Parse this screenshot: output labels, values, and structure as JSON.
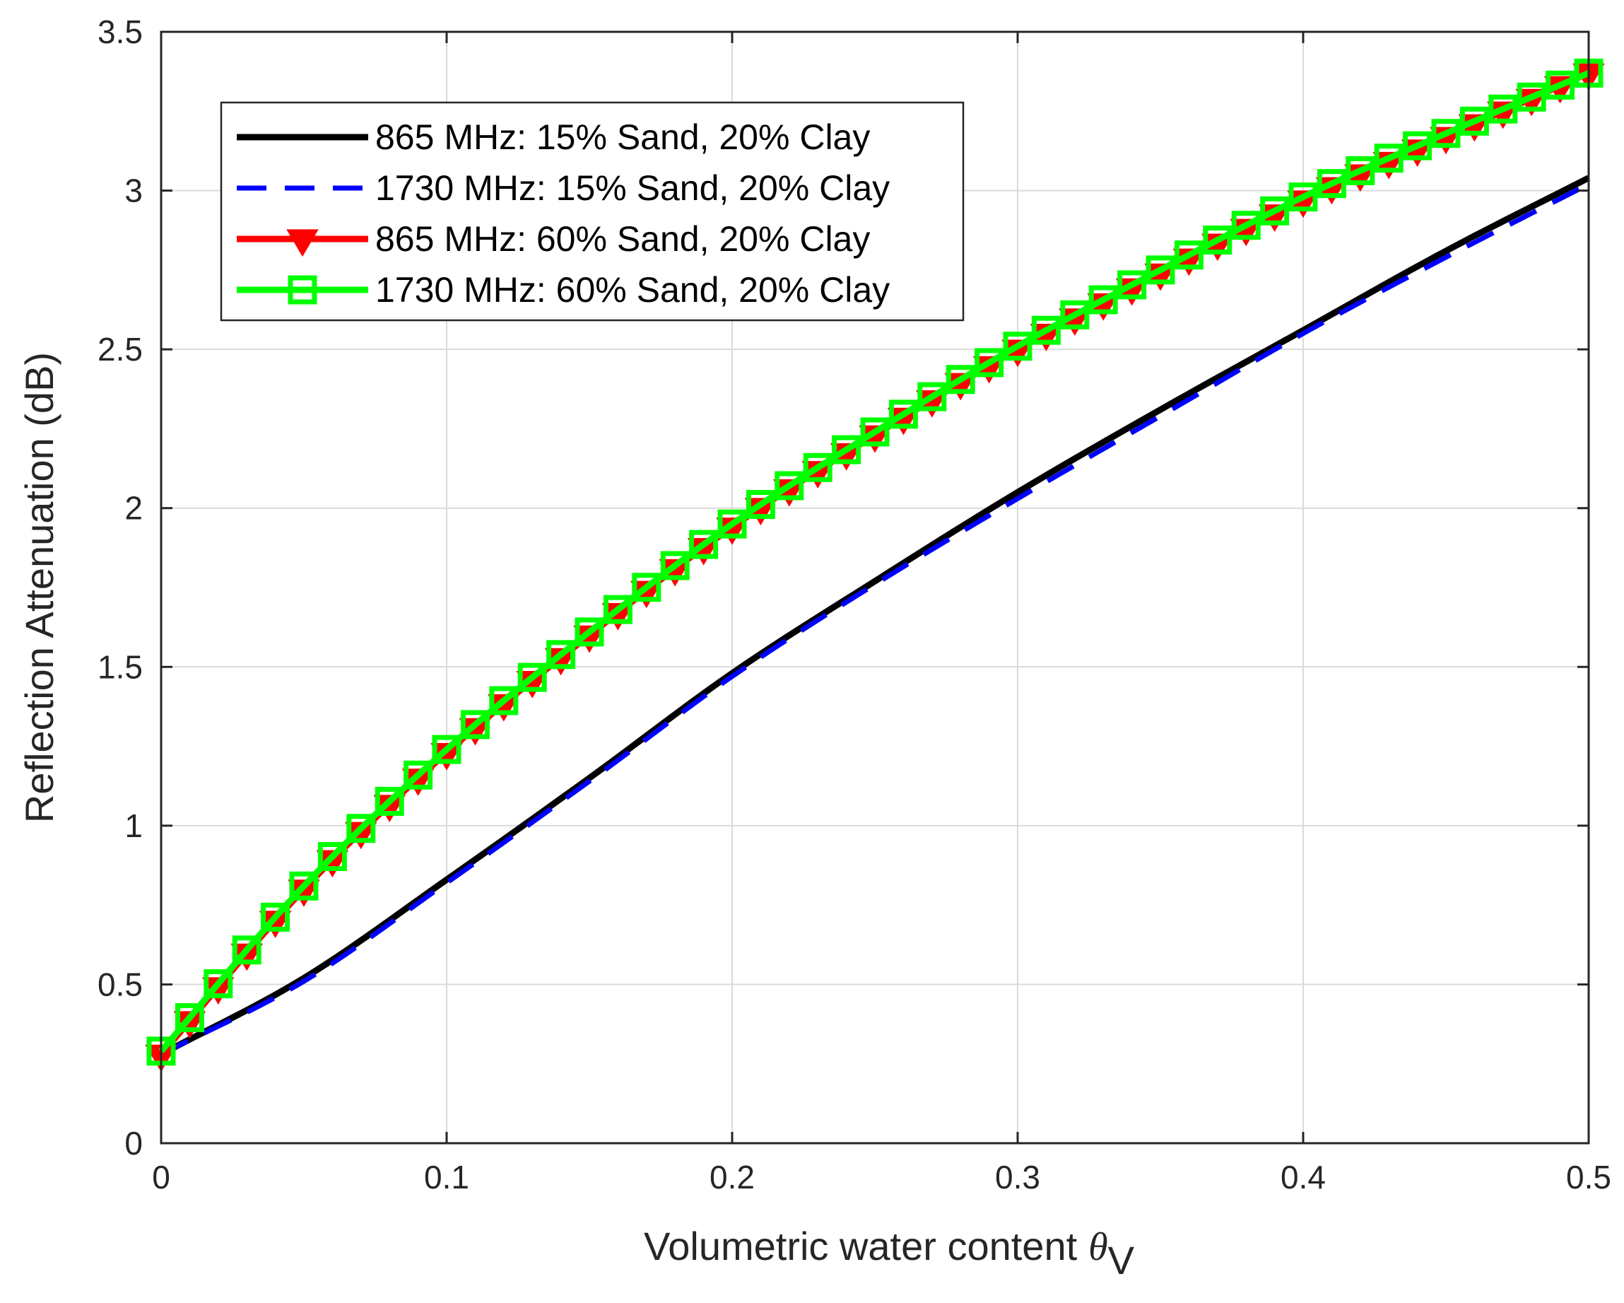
{
  "chart_data": {
    "type": "line",
    "title": "",
    "xlabel": "Volumetric water content",
    "xlabel_symbol": "θ",
    "xlabel_subscript": "V",
    "ylabel": "Reflection Attenuation (dB)",
    "xlim": [
      0,
      0.5
    ],
    "ylim": [
      0,
      3.5
    ],
    "xticks": [
      0,
      0.1,
      0.2,
      0.3,
      0.4,
      0.5
    ],
    "xtick_labels": [
      "0",
      "0.1",
      "0.2",
      "0.3",
      "0.4",
      "0.5"
    ],
    "yticks": [
      0,
      0.5,
      1,
      1.5,
      2,
      2.5,
      3,
      3.5
    ],
    "ytick_labels": [
      "0",
      "0.5",
      "1",
      "1.5",
      "2",
      "2.5",
      "3",
      "3.5"
    ],
    "grid": true,
    "legend_position": "top-left",
    "x": [
      0,
      0.05,
      0.1,
      0.15,
      0.2,
      0.25,
      0.3,
      0.35,
      0.4,
      0.45,
      0.5
    ],
    "series": [
      {
        "name": "865 MHz: 15% Sand, 20% Clay",
        "color": "#000000",
        "line": "solid",
        "marker": "none",
        "values": [
          0.28,
          0.52,
          0.83,
          1.15,
          1.48,
          1.77,
          2.05,
          2.31,
          2.56,
          2.81,
          3.04
        ]
      },
      {
        "name": "1730 MHz: 15% Sand, 20% Clay",
        "color": "#0000ff",
        "line": "dashed",
        "marker": "none",
        "values": [
          0.28,
          0.51,
          0.82,
          1.14,
          1.47,
          1.76,
          2.03,
          2.29,
          2.55,
          2.79,
          3.02
        ]
      },
      {
        "name": "865 MHz: 60% Sand, 20% Clay",
        "color": "#ff0000",
        "line": "solid",
        "marker": "triangle-down",
        "values": [
          0.28,
          0.8,
          1.23,
          1.6,
          1.94,
          2.23,
          2.5,
          2.74,
          2.97,
          3.17,
          3.37
        ]
      },
      {
        "name": "1730 MHz: 60% Sand, 20% Clay",
        "color": "#00ff00",
        "line": "solid",
        "marker": "square",
        "values": [
          0.29,
          0.81,
          1.24,
          1.61,
          1.95,
          2.24,
          2.51,
          2.75,
          2.98,
          3.18,
          3.37
        ]
      }
    ]
  }
}
